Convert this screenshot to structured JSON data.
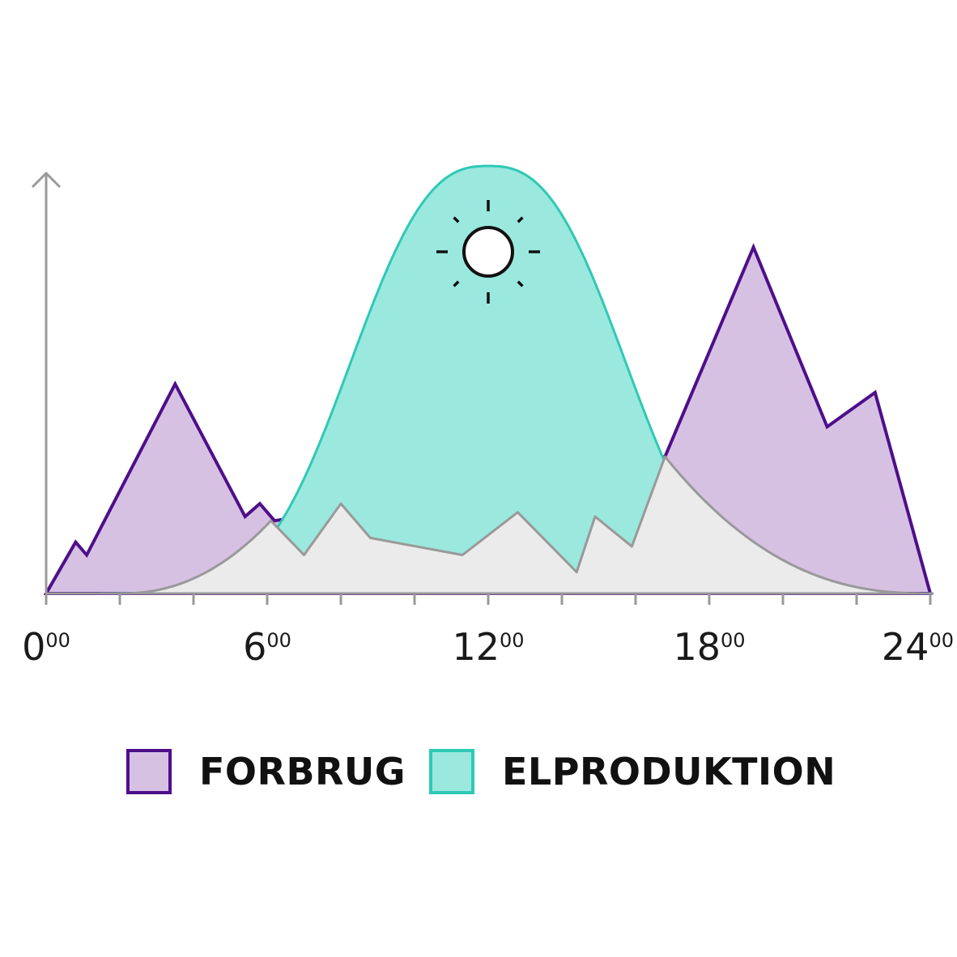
{
  "chart_data": {
    "type": "area",
    "x_ticks": [
      {
        "value": 0,
        "label": "0",
        "sup": "00"
      },
      {
        "value": 6,
        "label": "6",
        "sup": "00"
      },
      {
        "value": 12,
        "label": "12",
        "sup": "00"
      },
      {
        "value": 18,
        "label": "18",
        "sup": "00"
      },
      {
        "value": 24,
        "label": "24",
        "sup": "00"
      }
    ],
    "xlim": [
      0,
      24
    ],
    "ylim": [
      0,
      100
    ],
    "series": [
      {
        "name": "FORBRUG",
        "color": "#d6c1e3",
        "stroke": "#4e0f8a",
        "points": [
          [
            0,
            0
          ],
          [
            0.8,
            12
          ],
          [
            1.1,
            9
          ],
          [
            3.5,
            49
          ],
          [
            5.4,
            18
          ],
          [
            5.8,
            21
          ],
          [
            6.2,
            17
          ],
          [
            16.8,
            32
          ],
          [
            19.2,
            81
          ],
          [
            21.2,
            39
          ],
          [
            22.5,
            47
          ],
          [
            24,
            0
          ]
        ]
      },
      {
        "name": "ELPRODUKTION",
        "color": "#9be8de",
        "stroke": "#2ec9b5",
        "peak": 100,
        "points": [
          [
            0,
            0
          ],
          [
            2,
            0
          ],
          [
            6.1,
            17
          ],
          [
            7,
            9
          ],
          [
            8,
            21
          ],
          [
            8.8,
            13
          ],
          [
            11.3,
            9
          ],
          [
            12.8,
            19
          ],
          [
            14.4,
            5
          ],
          [
            14.9,
            18
          ],
          [
            15.9,
            11
          ],
          [
            16.8,
            32
          ],
          [
            24,
            0
          ]
        ]
      }
    ],
    "background_area": {
      "color": "#ebebeb",
      "stroke": "#999999"
    },
    "axis_color": "#999999",
    "icon": "sun-icon"
  },
  "legend": [
    {
      "label": "FORBRUG",
      "fill": "#d6c1e3",
      "border": "#4e0f8a"
    },
    {
      "label": "ELPRODUKTION",
      "fill": "#9be8de",
      "border": "#2ec9b5"
    }
  ]
}
